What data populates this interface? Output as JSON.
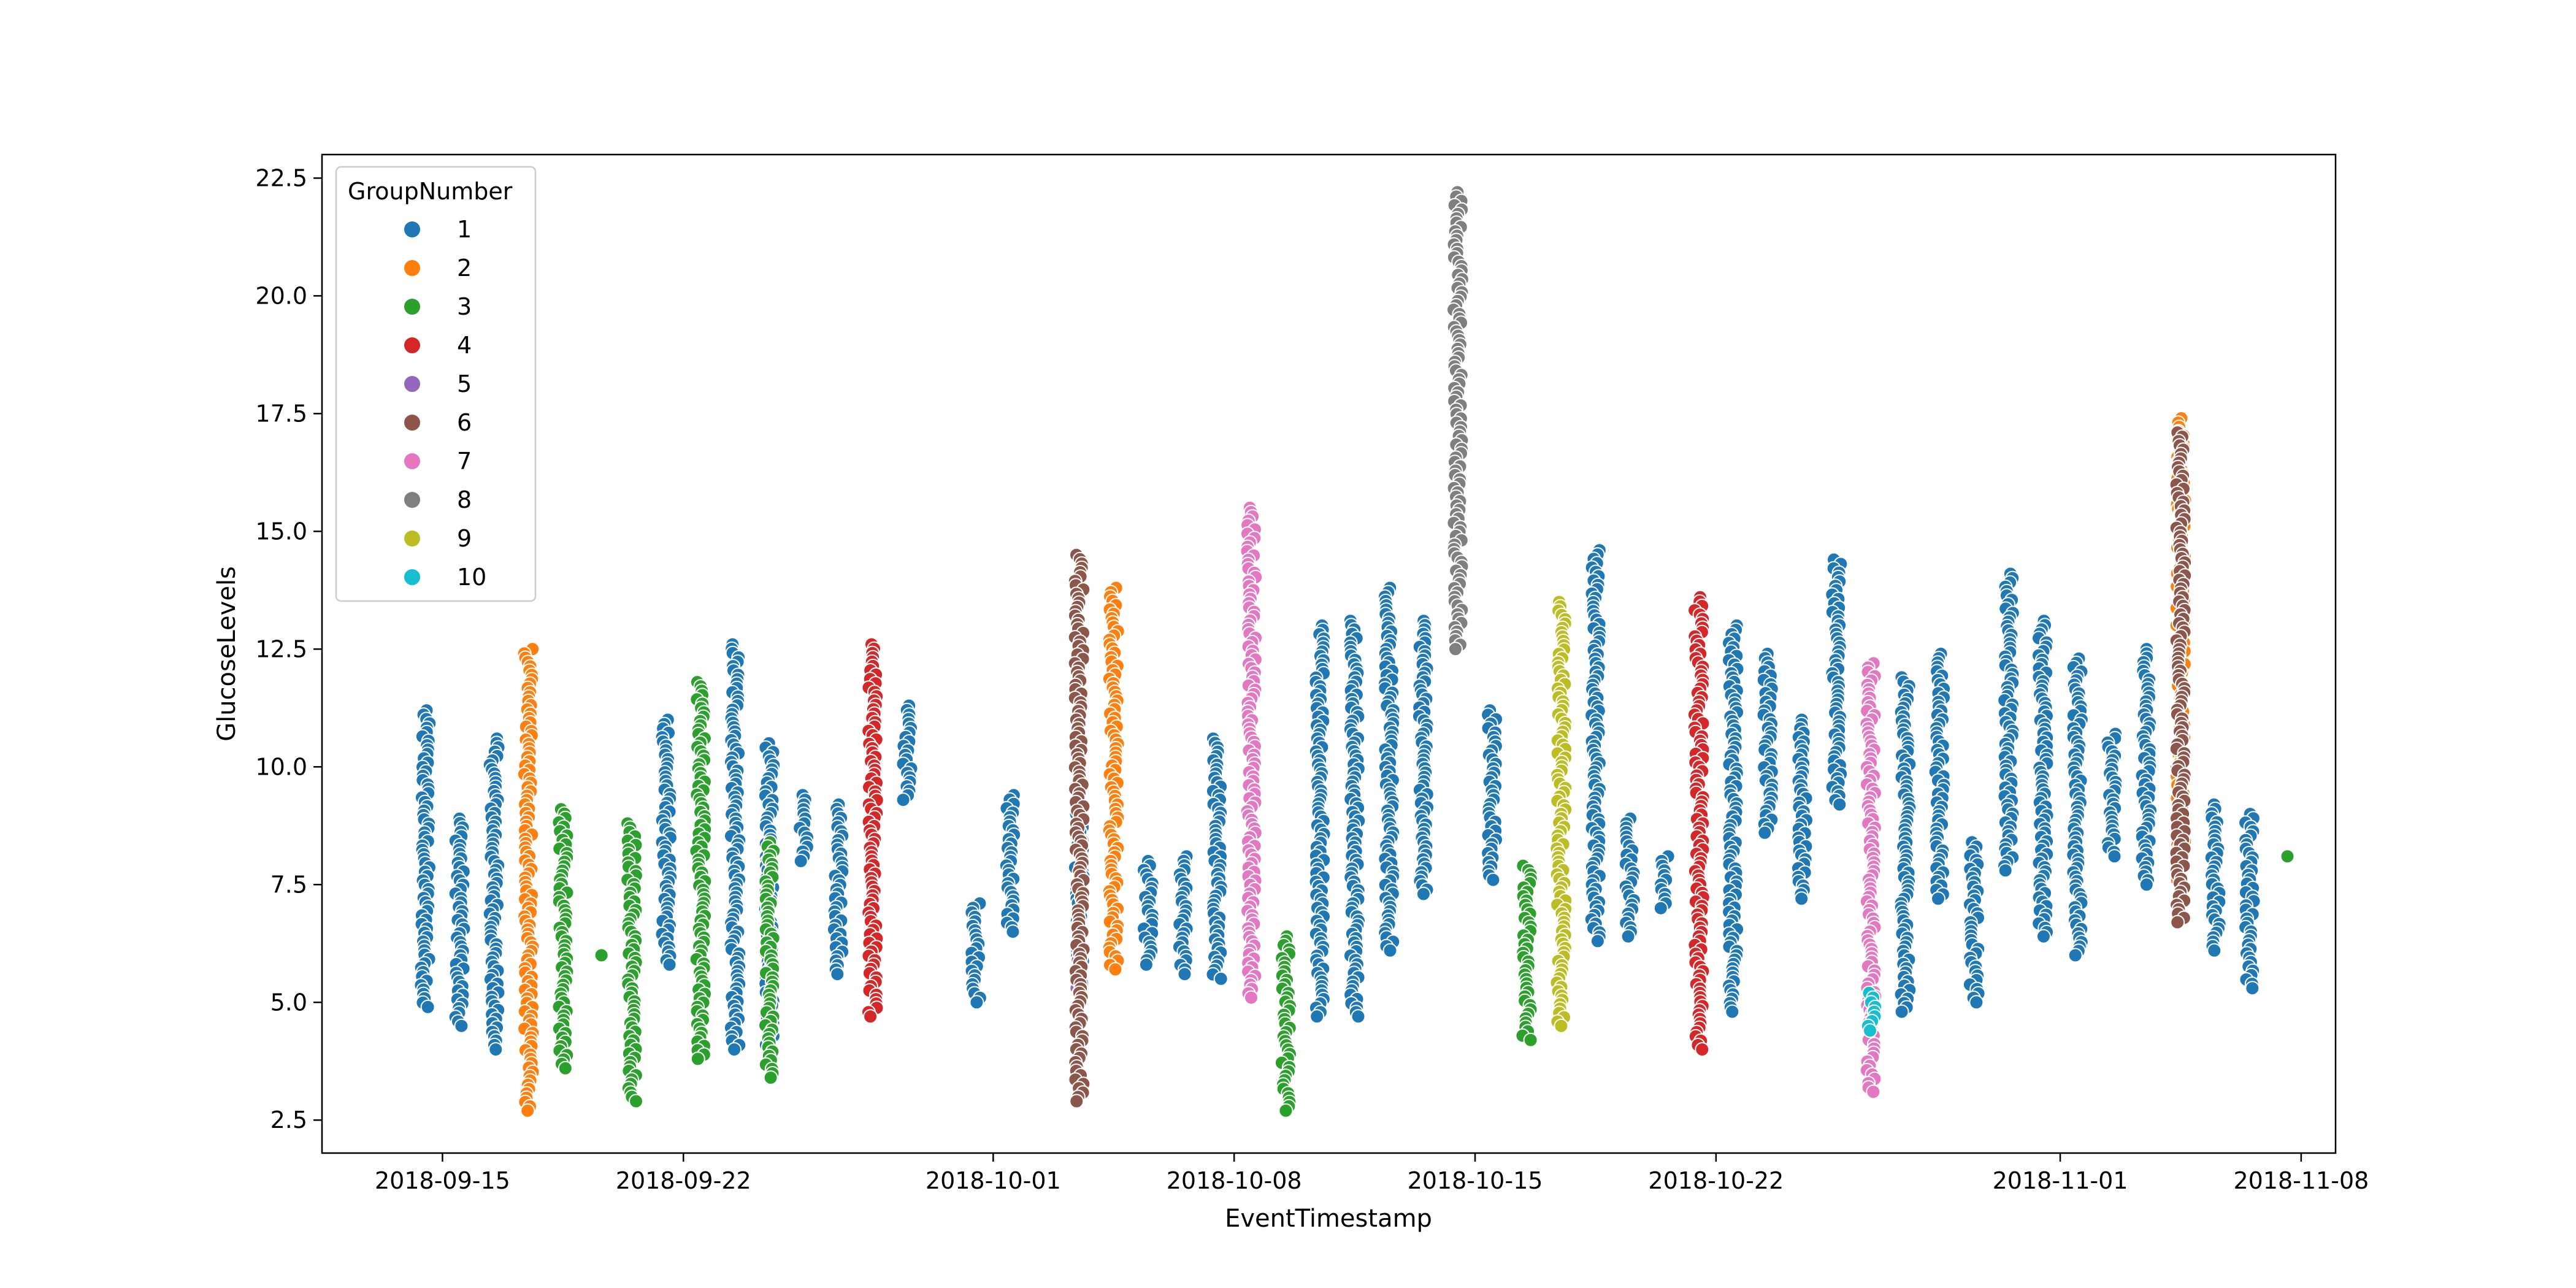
{
  "chart_data": {
    "type": "scatter",
    "title": "",
    "xlabel": "EventTimestamp",
    "ylabel": "GlucoseLevels",
    "x_axis_type": "date",
    "xlim": [
      "2018-09-11T12:00",
      "2018-11-09T00:00"
    ],
    "ylim": [
      1.8,
      23.0
    ],
    "x_ticks": [
      "2018-09-15",
      "2018-09-22",
      "2018-10-01",
      "2018-10-08",
      "2018-10-15",
      "2018-10-22",
      "2018-11-01",
      "2018-11-08"
    ],
    "y_ticks": [
      2.5,
      5.0,
      7.5,
      10.0,
      12.5,
      15.0,
      17.5,
      20.0,
      22.5
    ],
    "y_tick_labels": [
      "2.5",
      "5.0",
      "7.5",
      "10.0",
      "12.5",
      "15.0",
      "17.5",
      "20.0",
      "22.5"
    ],
    "grid": false,
    "legend": {
      "title": "GroupNumber",
      "position": "upper-left",
      "entries": [
        {
          "label": "1",
          "color": "#1f77b4"
        },
        {
          "label": "2",
          "color": "#ff7f0e"
        },
        {
          "label": "3",
          "color": "#2ca02c"
        },
        {
          "label": "4",
          "color": "#d62728"
        },
        {
          "label": "5",
          "color": "#9467bd"
        },
        {
          "label": "6",
          "color": "#8c564b"
        },
        {
          "label": "7",
          "color": "#e377c2"
        },
        {
          "label": "8",
          "color": "#7f7f7f"
        },
        {
          "label": "9",
          "color": "#bcbd22"
        },
        {
          "label": "10",
          "color": "#17becf"
        }
      ]
    },
    "series": [
      {
        "group": "1",
        "color": "#1f77b4",
        "clusters": [
          {
            "date": "2018-09-14",
            "ymin": 4.9,
            "ymax": 11.2
          },
          {
            "date": "2018-09-15",
            "ymin": 4.5,
            "ymax": 8.9
          },
          {
            "date": "2018-09-16",
            "ymin": 4.0,
            "ymax": 10.6
          },
          {
            "date": "2018-09-21",
            "ymin": 5.8,
            "ymax": 11.0
          },
          {
            "date": "2018-09-23",
            "ymin": 4.0,
            "ymax": 12.6
          },
          {
            "date": "2018-09-24",
            "ymin": 4.1,
            "ymax": 10.5
          },
          {
            "date": "2018-09-25",
            "ymin": 8.0,
            "ymax": 9.4
          },
          {
            "date": "2018-09-26",
            "ymin": 5.6,
            "ymax": 9.2
          },
          {
            "date": "2018-09-28",
            "ymin": 9.3,
            "ymax": 11.3
          },
          {
            "date": "2018-09-30",
            "ymin": 5.0,
            "ymax": 7.1
          },
          {
            "date": "2018-10-01",
            "ymin": 6.5,
            "ymax": 9.4
          },
          {
            "date": "2018-10-03",
            "ymin": 5.4,
            "ymax": 9.0
          },
          {
            "date": "2018-10-05",
            "ymin": 5.8,
            "ymax": 8.0
          },
          {
            "date": "2018-10-06",
            "ymin": 5.6,
            "ymax": 8.1
          },
          {
            "date": "2018-10-07",
            "ymin": 5.5,
            "ymax": 10.6
          },
          {
            "date": "2018-10-10",
            "ymin": 4.7,
            "ymax": 13.0
          },
          {
            "date": "2018-10-11",
            "ymin": 4.7,
            "ymax": 13.1
          },
          {
            "date": "2018-10-12",
            "ymin": 6.1,
            "ymax": 13.8
          },
          {
            "date": "2018-10-13",
            "ymin": 7.3,
            "ymax": 13.1
          },
          {
            "date": "2018-10-15",
            "ymin": 7.6,
            "ymax": 11.2
          },
          {
            "date": "2018-10-18",
            "ymin": 6.3,
            "ymax": 14.6
          },
          {
            "date": "2018-10-19",
            "ymin": 6.4,
            "ymax": 8.9
          },
          {
            "date": "2018-10-20",
            "ymin": 7.0,
            "ymax": 8.1
          },
          {
            "date": "2018-10-22",
            "ymin": 4.8,
            "ymax": 13.0
          },
          {
            "date": "2018-10-23",
            "ymin": 8.6,
            "ymax": 12.4
          },
          {
            "date": "2018-10-24",
            "ymin": 7.2,
            "ymax": 11.0
          },
          {
            "date": "2018-10-25",
            "ymin": 9.2,
            "ymax": 14.4
          },
          {
            "date": "2018-10-27",
            "ymin": 4.8,
            "ymax": 11.9
          },
          {
            "date": "2018-10-28",
            "ymin": 7.2,
            "ymax": 12.4
          },
          {
            "date": "2018-10-29",
            "ymin": 5.0,
            "ymax": 8.4
          },
          {
            "date": "2018-10-30",
            "ymin": 7.8,
            "ymax": 14.1
          },
          {
            "date": "2018-10-31",
            "ymin": 6.4,
            "ymax": 13.1
          },
          {
            "date": "2018-11-01",
            "ymin": 6.0,
            "ymax": 12.3
          },
          {
            "date": "2018-11-02",
            "ymin": 8.1,
            "ymax": 10.7
          },
          {
            "date": "2018-11-03",
            "ymin": 7.5,
            "ymax": 12.5
          },
          {
            "date": "2018-11-05",
            "ymin": 6.1,
            "ymax": 9.2
          },
          {
            "date": "2018-11-06",
            "ymin": 5.3,
            "ymax": 9.0
          }
        ]
      },
      {
        "group": "2",
        "color": "#ff7f0e",
        "clusters": [
          {
            "date": "2018-09-17",
            "ymin": 2.7,
            "ymax": 12.5
          },
          {
            "date": "2018-10-04",
            "ymin": 5.7,
            "ymax": 13.8
          },
          {
            "date": "2018-11-04",
            "ymin": 7.6,
            "ymax": 17.4
          }
        ]
      },
      {
        "group": "3",
        "color": "#2ca02c",
        "clusters": [
          {
            "date": "2018-09-18",
            "ymin": 3.6,
            "ymax": 9.1
          },
          {
            "date": "2018-09-19",
            "ymin": 6.0,
            "ymax": 6.0
          },
          {
            "date": "2018-09-20",
            "ymin": 2.9,
            "ymax": 8.8
          },
          {
            "date": "2018-09-22",
            "ymin": 3.8,
            "ymax": 11.8
          },
          {
            "date": "2018-09-24",
            "ymin": 3.4,
            "ymax": 8.4
          },
          {
            "date": "2018-10-09",
            "ymin": 2.7,
            "ymax": 6.4
          },
          {
            "date": "2018-10-16",
            "ymin": 4.2,
            "ymax": 7.9
          },
          {
            "date": "2018-11-07",
            "ymin": 8.1,
            "ymax": 8.1
          }
        ]
      },
      {
        "group": "4",
        "color": "#d62728",
        "clusters": [
          {
            "date": "2018-09-27",
            "ymin": 4.7,
            "ymax": 12.6
          },
          {
            "date": "2018-10-21",
            "ymin": 4.0,
            "ymax": 13.6
          }
        ]
      },
      {
        "group": "5",
        "color": "#9467bd",
        "clusters": [
          {
            "date": "2018-10-03",
            "ymin": 5.2,
            "ymax": 5.9
          }
        ]
      },
      {
        "group": "6",
        "color": "#8c564b",
        "clusters": [
          {
            "date": "2018-10-03",
            "ymin": 2.9,
            "ymax": 14.5
          },
          {
            "date": "2018-11-04",
            "ymin": 6.7,
            "ymax": 17.1
          }
        ]
      },
      {
        "group": "7",
        "color": "#e377c2",
        "clusters": [
          {
            "date": "2018-10-08",
            "ymin": 5.1,
            "ymax": 15.5
          },
          {
            "date": "2018-10-26",
            "ymin": 3.1,
            "ymax": 12.2
          }
        ]
      },
      {
        "group": "8",
        "color": "#7f7f7f",
        "clusters": [
          {
            "date": "2018-10-14",
            "ymin": 12.5,
            "ymax": 22.2
          }
        ]
      },
      {
        "group": "9",
        "color": "#bcbd22",
        "clusters": [
          {
            "date": "2018-10-17",
            "ymin": 4.5,
            "ymax": 13.5
          }
        ]
      },
      {
        "group": "10",
        "color": "#17becf",
        "clusters": [
          {
            "date": "2018-10-26",
            "ymin": 4.4,
            "ymax": 5.2
          }
        ]
      }
    ]
  }
}
